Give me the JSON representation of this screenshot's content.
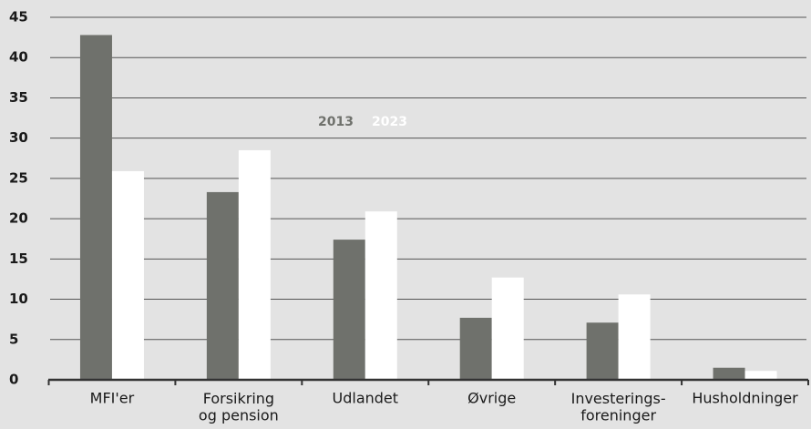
{
  "chart_data": {
    "type": "bar",
    "categories": [
      "MFI'er",
      "Forsikring\nog pension",
      "Udlandet",
      "Øvrige",
      "Investerings-\nforeninger",
      "Husholdninger"
    ],
    "series": [
      {
        "name": "2013",
        "color": "#6f716c",
        "values": [
          42.8,
          23.3,
          17.4,
          7.7,
          7.1,
          1.5
        ]
      },
      {
        "name": "2023",
        "color": "#ffffff",
        "values": [
          25.9,
          28.5,
          20.9,
          12.7,
          10.6,
          1.1
        ]
      }
    ],
    "ylim": [
      0,
      45
    ],
    "yticks": [
      0,
      5,
      10,
      15,
      20,
      25,
      30,
      35,
      40,
      45
    ],
    "grid": true
  }
}
